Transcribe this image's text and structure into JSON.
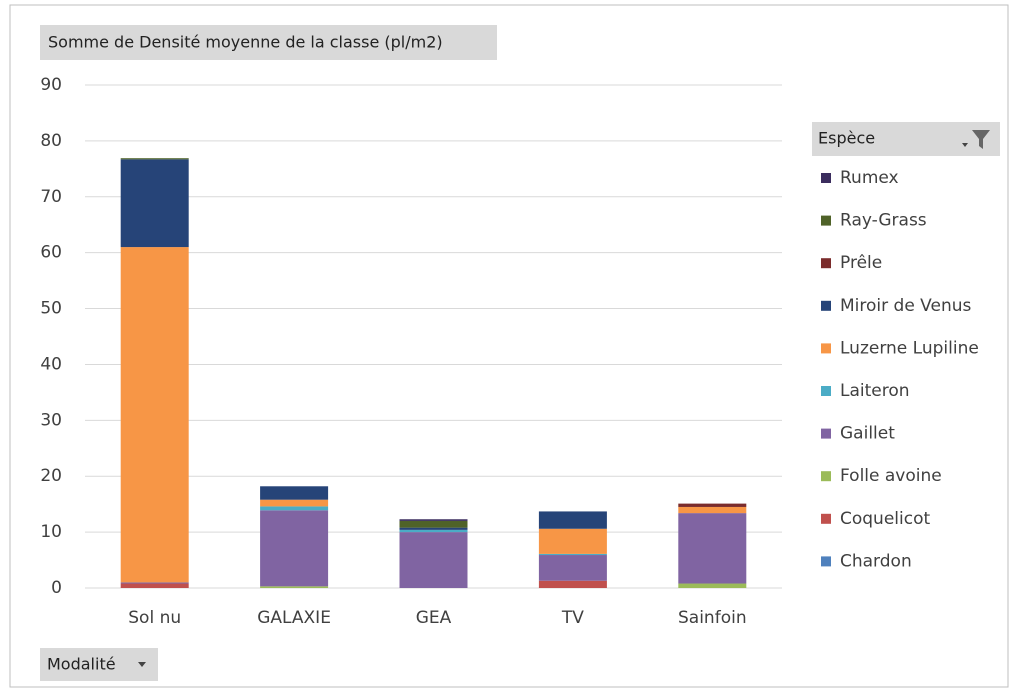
{
  "chart_data": {
    "type": "stacked_bar",
    "title": "Somme de Densité moyenne de la classe (pl/m2)",
    "legend_title": "Espèce",
    "filter_label": "Modalité",
    "categories": [
      "Sol nu",
      "GALAXIE",
      "GEA",
      "TV",
      "Sainfoin"
    ],
    "series": [
      {
        "name": "Chardon",
        "color": "#4f81bd",
        "values": [
          0,
          0,
          0,
          0,
          0
        ]
      },
      {
        "name": "Coquelicot",
        "color": "#c0504d",
        "values": [
          0.8,
          0,
          0,
          1.3,
          0
        ]
      },
      {
        "name": "Folle avoine",
        "color": "#9bbb59",
        "values": [
          0,
          0.3,
          0,
          0,
          0.8
        ]
      },
      {
        "name": "Gaillet",
        "color": "#8064a2",
        "values": [
          0.2,
          13.6,
          10,
          4.6,
          12.6
        ]
      },
      {
        "name": "Laiteron",
        "color": "#4bacc6",
        "values": [
          0,
          0.7,
          0.4,
          0.2,
          0
        ]
      },
      {
        "name": "Luzerne Lupiline",
        "color": "#f79646",
        "values": [
          60,
          1.2,
          0,
          4.5,
          1.1
        ]
      },
      {
        "name": "Miroir de Venus",
        "color": "#264478",
        "values": [
          15.7,
          2.4,
          0.4,
          3.1,
          0
        ]
      },
      {
        "name": "Prêle",
        "color": "#7b2c2c",
        "values": [
          0,
          0,
          0,
          0,
          0.6
        ]
      },
      {
        "name": "Ray-Grass",
        "color": "#4f6228",
        "values": [
          0.2,
          0,
          1.2,
          0,
          0
        ]
      },
      {
        "name": "Rumex",
        "color": "#3b2d5e",
        "values": [
          0,
          0,
          0.3,
          0,
          0
        ]
      }
    ],
    "ylim": [
      0,
      90
    ],
    "yticks": [
      0,
      10,
      20,
      30,
      40,
      50,
      60,
      70,
      80,
      90
    ],
    "grid": true,
    "legend": "right"
  }
}
